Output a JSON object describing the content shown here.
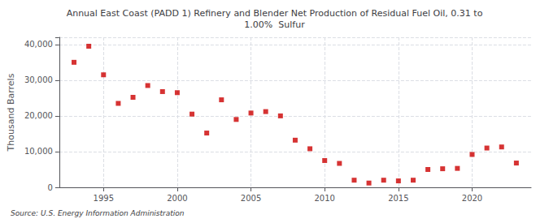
{
  "chart_data": {
    "type": "scatter",
    "title": "Annual East Coast (PADD 1) Refinery and Blender Net Production of Residual Fuel Oil, 0.31 to\n1.00%  Sulfur",
    "ylabel": "Thousand Barrels",
    "annotations": [
      "Source: U.S. Energy Information Administration"
    ],
    "x": [
      1993,
      1994,
      1995,
      1996,
      1997,
      1998,
      1999,
      2000,
      2001,
      2002,
      2003,
      2004,
      2005,
      2006,
      2007,
      2008,
      2009,
      2010,
      2011,
      2012,
      2013,
      2014,
      2015,
      2016,
      2017,
      2018,
      2019,
      2020,
      2021,
      2022,
      2023
    ],
    "values": [
      35000,
      39500,
      31500,
      23500,
      25200,
      28500,
      26800,
      26500,
      20500,
      15200,
      24500,
      19000,
      20800,
      21200,
      20000,
      13200,
      10800,
      7500,
      6700,
      2000,
      1200,
      2000,
      1800,
      2000,
      5000,
      5200,
      5300,
      9200,
      11000,
      11300,
      6800
    ],
    "color": "#cc0000",
    "marker": "square",
    "xlim": [
      1992,
      2024
    ],
    "xticks": [
      1995,
      2000,
      2005,
      2010,
      2015,
      2020
    ],
    "ylim": [
      0,
      42000
    ],
    "yticks": [
      0,
      {
        "value": 10000,
        "label": "10,000"
      },
      {
        "value": 20000,
        "label": "20,000"
      },
      {
        "value": 30000,
        "label": "30,000"
      },
      {
        "value": 40000,
        "label": "40,000"
      }
    ],
    "grid": true
  }
}
